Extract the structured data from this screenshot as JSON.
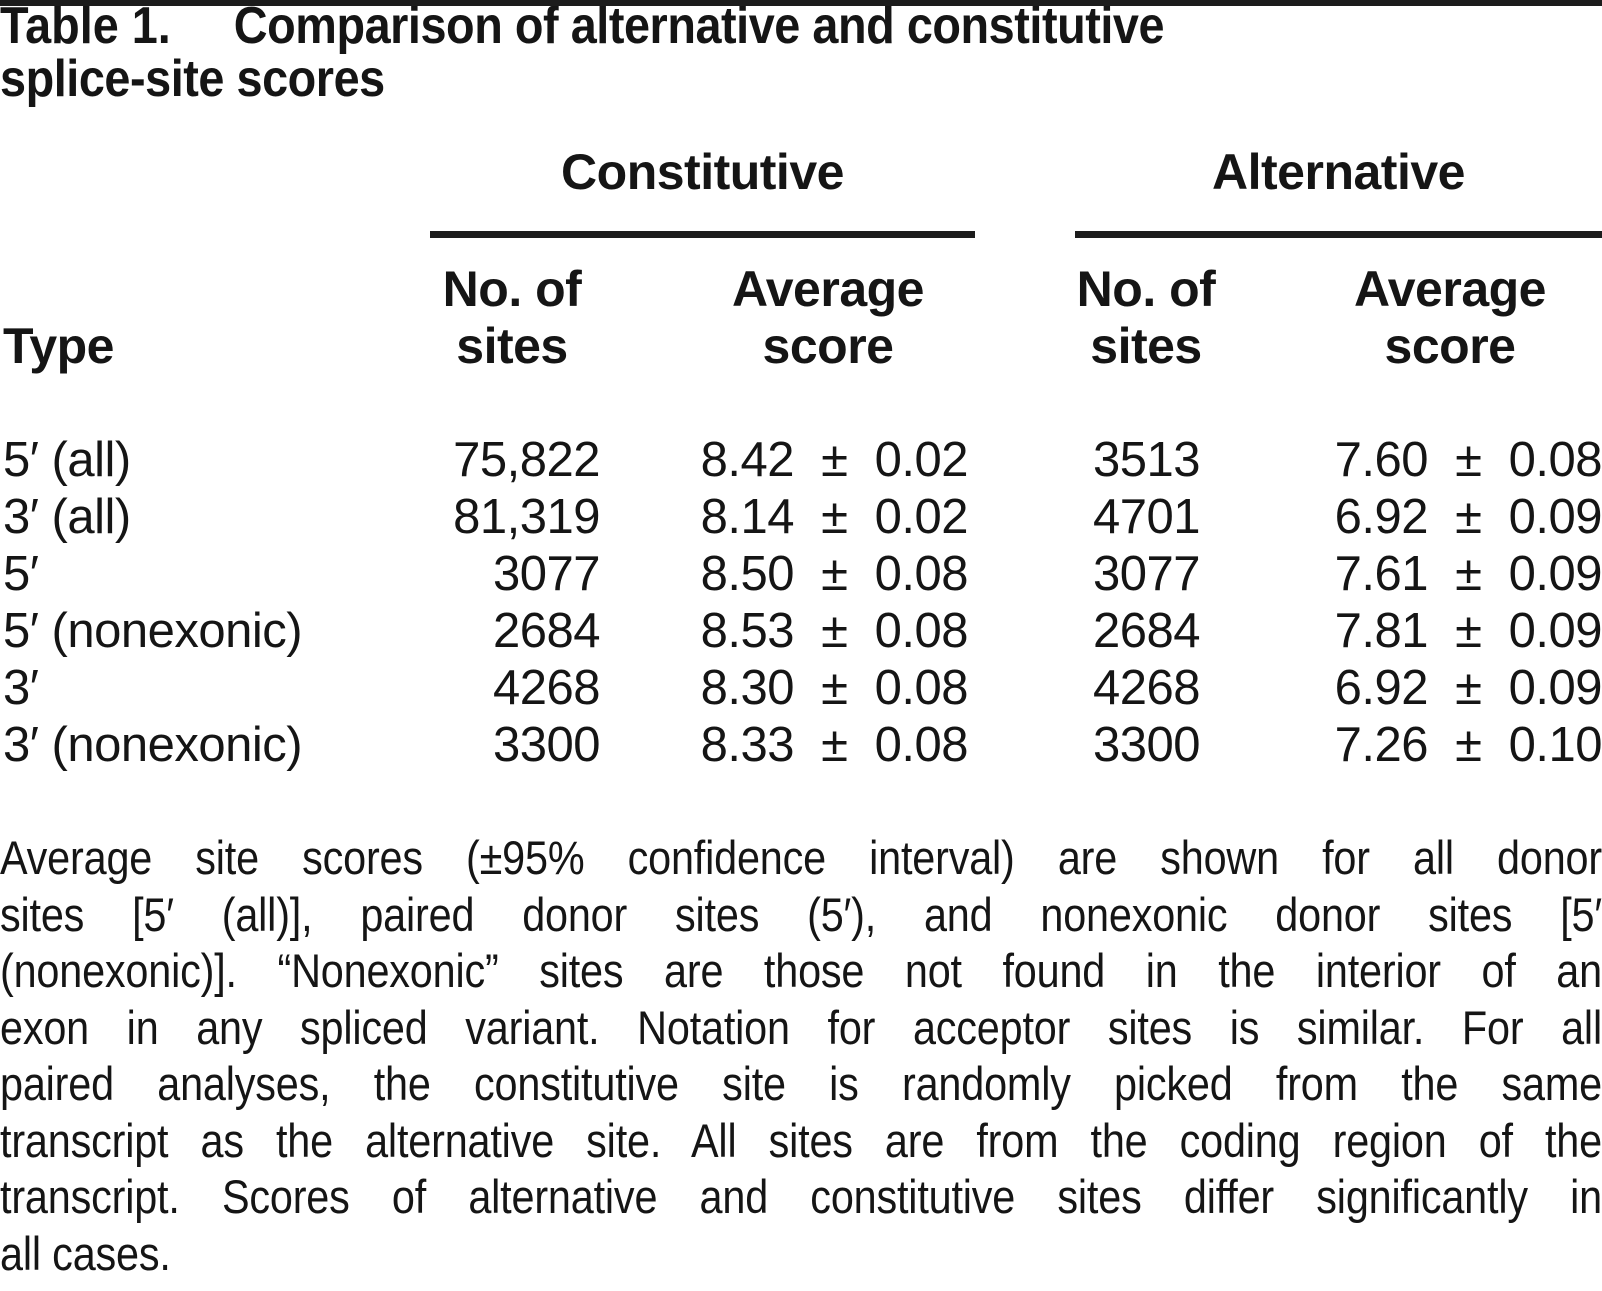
{
  "title": {
    "label": "Table 1.",
    "text": "Comparison of alternative and constitutive\nsplice-site scores"
  },
  "header": {
    "type_label": "Type",
    "groups": [
      {
        "label": "Constitutive",
        "subcols": [
          "No. of\nsites",
          "Average\nscore"
        ]
      },
      {
        "label": "Alternative",
        "subcols": [
          "No. of\nsites",
          "Average\nscore"
        ]
      }
    ]
  },
  "table": {
    "columns": [
      "Type",
      "Constitutive No. of sites",
      "Constitutive Average score",
      "Alternative No. of sites",
      "Alternative Average score"
    ],
    "rows": [
      {
        "type": "5′ (all)",
        "constitutive_sites": "75,822",
        "constitutive_score": "8.42 ± 0.02",
        "alternative_sites": "3513",
        "alternative_score": "7.60 ± 0.08"
      },
      {
        "type": "3′ (all)",
        "constitutive_sites": "81,319",
        "constitutive_score": "8.14 ± 0.02",
        "alternative_sites": "4701",
        "alternative_score": "6.92 ± 0.09"
      },
      {
        "type": "5′",
        "constitutive_sites": "3077",
        "constitutive_score": "8.50 ± 0.08",
        "alternative_sites": "3077",
        "alternative_score": "7.61 ± 0.09"
      },
      {
        "type": "5′ (nonexonic)",
        "constitutive_sites": "2684",
        "constitutive_score": "8.53 ± 0.08",
        "alternative_sites": "2684",
        "alternative_score": "7.81 ± 0.09"
      },
      {
        "type": "3′",
        "constitutive_sites": "4268",
        "constitutive_score": "8.30 ± 0.08",
        "alternative_sites": "4268",
        "alternative_score": "6.92 ± 0.09"
      },
      {
        "type": "3′ (nonexonic)",
        "constitutive_sites": "3300",
        "constitutive_score": "8.33 ± 0.08",
        "alternative_sites": "3300",
        "alternative_score": "7.26 ± 0.10"
      }
    ]
  },
  "footnote": {
    "lines": [
      "Average site scores (±95% confidence interval) are shown for all donor",
      "sites [5′ (all)], paired donor sites (5′), and nonexonic donor sites [5′",
      "(nonexonic)]. “Nonexonic” sites are those not found in the interior of an",
      "exon in any spliced variant. Notation for acceptor sites is similar. For all",
      "paired analyses, the constitutive site is randomly picked from the same",
      "transcript as the alternative site. All sites are from the coding region of the",
      "transcript. Scores of alternative and constitutive sites differ significantly in",
      "all cases."
    ]
  },
  "colors": {
    "text": "#151515",
    "rule": "#1c1c1c",
    "background": "#ffffff"
  }
}
